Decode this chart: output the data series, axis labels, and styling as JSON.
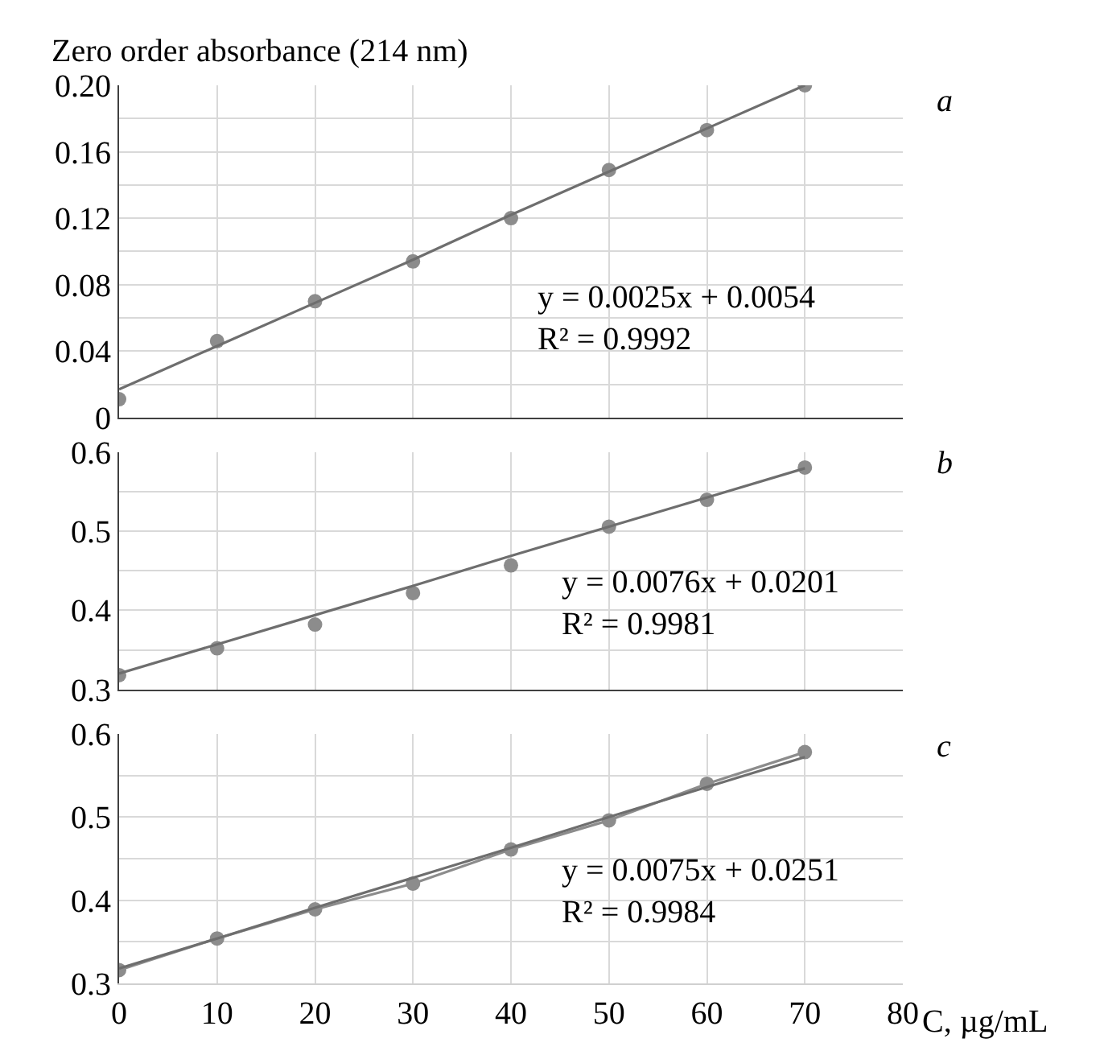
{
  "chart_data": [
    {
      "type": "scatter",
      "ylabel": "Zero order absorbance (214 nm)",
      "xlim": [
        0,
        80
      ],
      "xticks": [
        0,
        10,
        20,
        30,
        40,
        50,
        60,
        70,
        80
      ],
      "ylim": [
        0,
        0.2
      ],
      "yticks": [
        0,
        {
          "value": 0.02,
          "label": null
        },
        0.04,
        {
          "value": 0.06,
          "label": null
        },
        0.08,
        {
          "value": 0.1,
          "label": null
        },
        0.12,
        {
          "value": 0.14,
          "label": null
        },
        0.16,
        {
          "value": 0.18,
          "label": null
        },
        {
          "value": 0.2,
          "label": "0.20"
        }
      ],
      "tick_labels": "y",
      "grid": true,
      "x": [
        0,
        10,
        20,
        30,
        40,
        50,
        60,
        70
      ],
      "series": [
        {
          "type": "scatter",
          "marker": "circle",
          "color": "#8c8c8c",
          "values": [
            0.011,
            0.046,
            0.07,
            0.094,
            0.12,
            0.149,
            0.173,
            0.2
          ]
        },
        {
          "type": "line",
          "marker": "none",
          "color": "#6e6e6e",
          "values": [
            0.017,
            0.043,
            0.069,
            0.095,
            0.122,
            0.148,
            0.174,
            0.2
          ]
        }
      ],
      "annotations": [
        "y = 0.0025x + 0.0054",
        "R² = 0.9992",
        "a"
      ]
    },
    {
      "type": "scatter",
      "xlim": [
        0,
        80
      ],
      "xticks": [
        0,
        10,
        20,
        30,
        40,
        50,
        60,
        70,
        80
      ],
      "ylim": [
        0.3,
        0.6
      ],
      "yticks": [
        0.3,
        {
          "value": 0.35,
          "label": null
        },
        0.4,
        {
          "value": 0.45,
          "label": null
        },
        0.5,
        {
          "value": 0.55,
          "label": null
        },
        0.6
      ],
      "tick_labels": "y",
      "grid": true,
      "x": [
        0,
        10,
        20,
        30,
        40,
        50,
        60,
        70
      ],
      "series": [
        {
          "type": "scatter",
          "marker": "circle",
          "color": "#8c8c8c",
          "values": [
            0.318,
            0.352,
            0.382,
            0.422,
            0.457,
            0.506,
            0.54,
            0.581
          ]
        },
        {
          "type": "line",
          "marker": "none",
          "color": "#6e6e6e",
          "values": [
            0.32,
            0.357,
            0.394,
            0.431,
            0.469,
            0.506,
            0.543,
            0.58
          ]
        }
      ],
      "annotations": [
        "y = 0.0076x + 0.0201",
        "R² = 0.9981",
        "b"
      ]
    },
    {
      "type": "scatter",
      "xlabel": "C, µg/mL",
      "xlim": [
        0,
        80
      ],
      "xticks": [
        0,
        10,
        20,
        30,
        40,
        50,
        60,
        70,
        80
      ],
      "ylim": [
        0.3,
        0.6
      ],
      "yticks": [
        0.3,
        {
          "value": 0.35,
          "label": null
        },
        0.4,
        {
          "value": 0.45,
          "label": null
        },
        0.5,
        {
          "value": 0.55,
          "label": null
        },
        0.6
      ],
      "grid": true,
      "x": [
        0,
        10,
        20,
        30,
        40,
        50,
        60,
        70
      ],
      "series": [
        {
          "type": "line",
          "marker": "circle",
          "color": "#8c8c8c",
          "values": [
            0.316,
            0.354,
            0.389,
            0.42,
            0.461,
            0.496,
            0.54,
            0.578
          ]
        },
        {
          "type": "line",
          "marker": "none",
          "color": "#6e6e6e",
          "values": [
            0.318,
            0.354,
            0.391,
            0.427,
            0.463,
            0.5,
            0.536,
            0.572
          ]
        }
      ],
      "annotations": [
        "y = 0.0075x + 0.0251",
        "R² = 0.9984",
        "c"
      ]
    }
  ]
}
